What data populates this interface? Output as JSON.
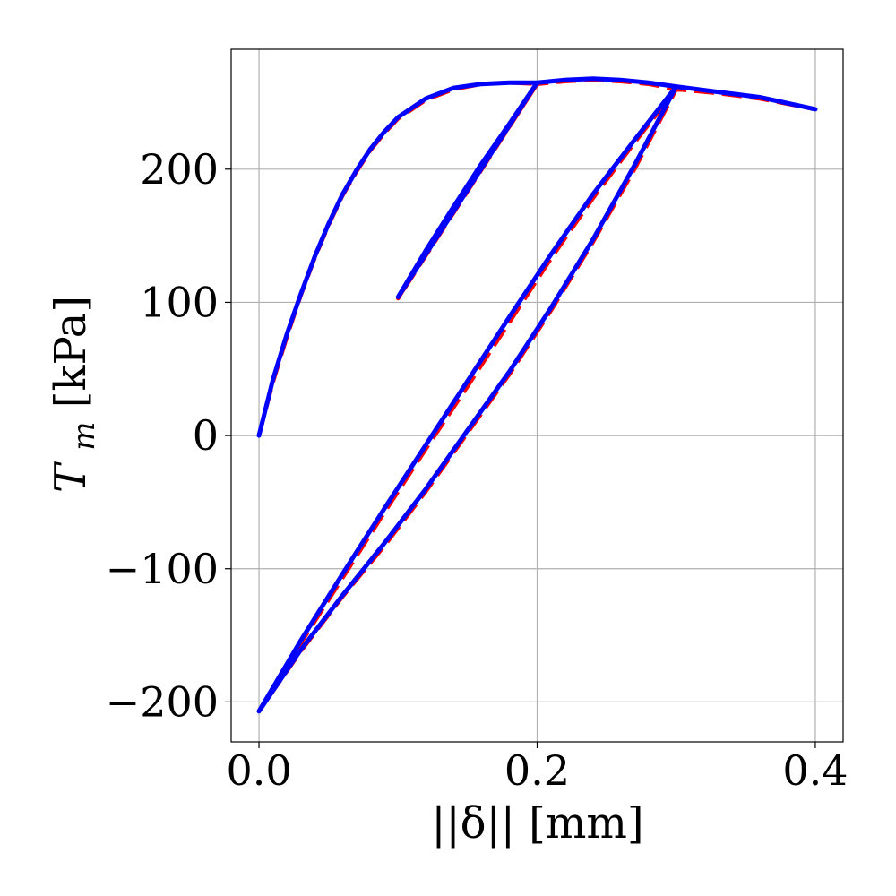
{
  "chart_data": {
    "type": "line",
    "title": "",
    "xlabel": "||δ|| [mm]",
    "ylabel": "T_m [kPa]",
    "ylabel_main": "T",
    "ylabel_sub": "m",
    "ylabel_unit": " [kPa]",
    "xlim": [
      -0.02,
      0.42
    ],
    "ylim": [
      -230,
      290
    ],
    "xticks": [
      0.0,
      0.2,
      0.4
    ],
    "xtick_labels": [
      "0.0",
      "0.2",
      "0.4"
    ],
    "yticks": [
      -200,
      -100,
      0,
      100,
      200
    ],
    "ytick_labels": [
      "−200",
      "−100",
      "0",
      "100",
      "200"
    ],
    "grid": true,
    "series": [
      {
        "style": "dashed",
        "color": "#ff0000",
        "points": [
          [
            0.0,
            0
          ],
          [
            0.01,
            40
          ],
          [
            0.02,
            74
          ],
          [
            0.03,
            105
          ],
          [
            0.04,
            133
          ],
          [
            0.05,
            158
          ],
          [
            0.06,
            180
          ],
          [
            0.07,
            198
          ],
          [
            0.08,
            214
          ],
          [
            0.09,
            227
          ],
          [
            0.1,
            238
          ],
          [
            0.12,
            252
          ],
          [
            0.14,
            260
          ],
          [
            0.16,
            264
          ],
          [
            0.18,
            265
          ],
          [
            0.2,
            264
          ],
          [
            0.1,
            103
          ],
          [
            0.12,
            137
          ],
          [
            0.14,
            170
          ],
          [
            0.16,
            202
          ],
          [
            0.18,
            232
          ],
          [
            0.2,
            264
          ],
          [
            0.22,
            266
          ],
          [
            0.24,
            267
          ],
          [
            0.26,
            266
          ],
          [
            0.28,
            264
          ],
          [
            0.3,
            260
          ],
          [
            0.27,
            200
          ],
          [
            0.24,
            145
          ],
          [
            0.21,
            94
          ],
          [
            0.18,
            46
          ],
          [
            0.15,
            2
          ],
          [
            0.12,
            -42
          ],
          [
            0.09,
            -83
          ],
          [
            0.06,
            -121
          ],
          [
            0.03,
            -162
          ],
          [
            0.0,
            -207
          ],
          [
            0.03,
            -156
          ],
          [
            0.06,
            -107
          ],
          [
            0.09,
            -58
          ],
          [
            0.12,
            -10
          ],
          [
            0.15,
            37
          ],
          [
            0.18,
            85
          ],
          [
            0.21,
            133
          ],
          [
            0.24,
            178
          ],
          [
            0.27,
            220
          ],
          [
            0.3,
            260
          ],
          [
            0.33,
            257
          ],
          [
            0.36,
            253
          ],
          [
            0.4,
            245
          ]
        ]
      },
      {
        "style": "solid",
        "color": "#0000ff",
        "points": [
          [
            0.0,
            0
          ],
          [
            0.01,
            42
          ],
          [
            0.02,
            76
          ],
          [
            0.03,
            106
          ],
          [
            0.04,
            134
          ],
          [
            0.05,
            159
          ],
          [
            0.06,
            181
          ],
          [
            0.07,
            199
          ],
          [
            0.08,
            215
          ],
          [
            0.09,
            228
          ],
          [
            0.1,
            239
          ],
          [
            0.12,
            253
          ],
          [
            0.14,
            261
          ],
          [
            0.16,
            264
          ],
          [
            0.18,
            265
          ],
          [
            0.2,
            265
          ],
          [
            0.1,
            104
          ],
          [
            0.12,
            139
          ],
          [
            0.14,
            172
          ],
          [
            0.16,
            204
          ],
          [
            0.18,
            234
          ],
          [
            0.2,
            265
          ],
          [
            0.22,
            267
          ],
          [
            0.24,
            268
          ],
          [
            0.26,
            267
          ],
          [
            0.28,
            265
          ],
          [
            0.3,
            262
          ],
          [
            0.27,
            203
          ],
          [
            0.24,
            147
          ],
          [
            0.21,
            96
          ],
          [
            0.18,
            48
          ],
          [
            0.15,
            4
          ],
          [
            0.12,
            -40
          ],
          [
            0.09,
            -81
          ],
          [
            0.06,
            -120
          ],
          [
            0.03,
            -161
          ],
          [
            0.0,
            -207
          ],
          [
            0.03,
            -154
          ],
          [
            0.06,
            -104
          ],
          [
            0.09,
            -55
          ],
          [
            0.12,
            -7
          ],
          [
            0.15,
            41
          ],
          [
            0.18,
            89
          ],
          [
            0.21,
            136
          ],
          [
            0.24,
            181
          ],
          [
            0.27,
            222
          ],
          [
            0.3,
            262
          ],
          [
            0.33,
            258
          ],
          [
            0.36,
            254
          ],
          [
            0.4,
            245
          ]
        ]
      }
    ]
  }
}
